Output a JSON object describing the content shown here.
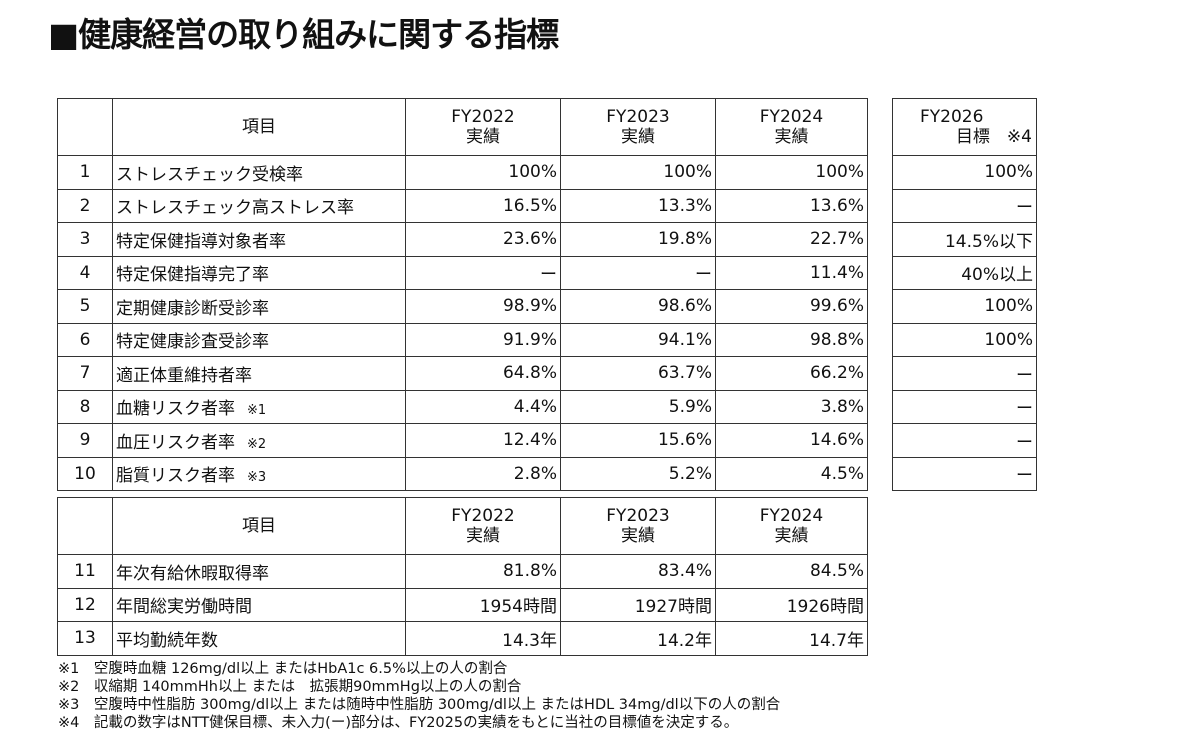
{
  "title": "■健康経営の取り組みに関する指標",
  "table1": {
    "headers": {
      "item": "項目",
      "fy2022": [
        "FY2022",
        "実績"
      ],
      "fy2023": [
        "FY2023",
        "実績"
      ],
      "fy2024": [
        "FY2024",
        "実績"
      ]
    },
    "rows": [
      {
        "no": "1",
        "item": "ストレスチェック受検率",
        "fy2022": "100%",
        "fy2023": "100%",
        "fy2024": "100%"
      },
      {
        "no": "2",
        "item": "ストレスチェック高ストレス率",
        "fy2022": "16.5%",
        "fy2023": "13.3%",
        "fy2024": "13.6%"
      },
      {
        "no": "3",
        "item": "特定保健指導対象者率",
        "fy2022": "23.6%",
        "fy2023": "19.8%",
        "fy2024": "22.7%"
      },
      {
        "no": "4",
        "item": "特定保健指導完了率",
        "fy2022": "ー",
        "fy2023": "ー",
        "fy2024": "11.4%"
      },
      {
        "no": "5",
        "item": "定期健康診断受診率",
        "fy2022": "98.9%",
        "fy2023": "98.6%",
        "fy2024": "99.6%"
      },
      {
        "no": "6",
        "item": "特定健康診査受診率",
        "fy2022": "91.9%",
        "fy2023": "94.1%",
        "fy2024": "98.8%"
      },
      {
        "no": "7",
        "item": "適正体重維持者率",
        "fy2022": "64.8%",
        "fy2023": "63.7%",
        "fy2024": "66.2%"
      },
      {
        "no": "8",
        "item": "血糖リスク者率",
        "note": "※1",
        "fy2022": "4.4%",
        "fy2023": "5.9%",
        "fy2024": "3.8%"
      },
      {
        "no": "9",
        "item": "血圧リスク者率",
        "note": "※2",
        "fy2022": "12.4%",
        "fy2023": "15.6%",
        "fy2024": "14.6%"
      },
      {
        "no": "10",
        "item": "脂質リスク者率",
        "note": "※3",
        "fy2022": "2.8%",
        "fy2023": "5.2%",
        "fy2024": "4.5%"
      }
    ]
  },
  "targets": {
    "header": [
      "FY2026",
      "目標　※4"
    ],
    "values": [
      "100%",
      "ー",
      "14.5%以下",
      "40%以上",
      "100%",
      "100%",
      "ー",
      "ー",
      "ー",
      "ー"
    ]
  },
  "table2": {
    "headers": {
      "item": "項目",
      "fy2022": [
        "FY2022",
        "実績"
      ],
      "fy2023": [
        "FY2023",
        "実績"
      ],
      "fy2024": [
        "FY2024",
        "実績"
      ]
    },
    "rows": [
      {
        "no": "11",
        "item": "年次有給休暇取得率",
        "fy2022": "81.8%",
        "fy2023": "83.4%",
        "fy2024": "84.5%"
      },
      {
        "no": "12",
        "item": "年間総実労働時間",
        "fy2022": "1954時間",
        "fy2023": "1927時間",
        "fy2024": "1926時間"
      },
      {
        "no": "13",
        "item": "平均勤続年数",
        "fy2022": "14.3年",
        "fy2023": "14.2年",
        "fy2024": "14.7年"
      }
    ]
  },
  "notes": [
    "※1　空腹時血糖 126mg/dl以上 またはHbA1c 6.5%以上の人の割合",
    "※2　収縮期 140mmHh以上 または　拡張期90mmHg以上の人の割合",
    "※3　空腹時中性脂肪 300mg/dl以上 または随時中性脂肪 300mg/dl以上 またはHDL 34mg/dl以下の人の割合",
    "※4　記載の数字はNTT健保目標、未入力(ー)部分は、FY2025の実績をもとに当社の目標値を決定する。"
  ]
}
